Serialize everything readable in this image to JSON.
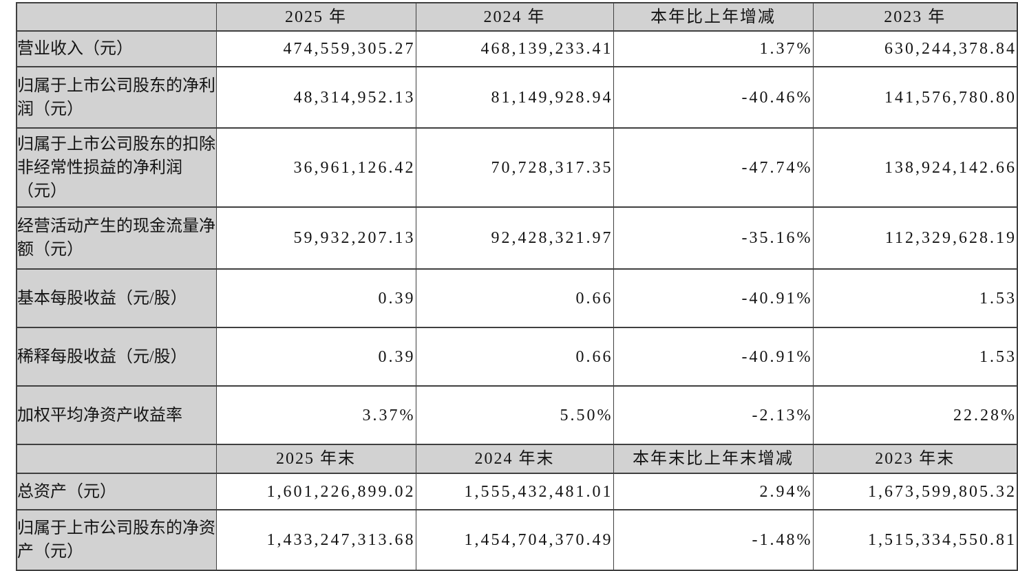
{
  "document": {
    "kind": "financial-summary-table",
    "colors": {
      "shaded_cell_bg": "#d2d2d2",
      "data_cell_bg": "#ffffff",
      "grid_line": "#3f3f3f",
      "text": "#141414"
    },
    "sections": [
      {
        "header": [
          "",
          "2025 年",
          "2024 年",
          "本年比上年增减",
          "2023 年"
        ],
        "rows": [
          {
            "label": "营业收入（元）",
            "values": [
              "474,559,305.27",
              "468,139,233.41",
              "1.37%",
              "630,244,378.84"
            ]
          },
          {
            "label": "归属于上市公司股东的净利润（元）",
            "values": [
              "48,314,952.13",
              "81,149,928.94",
              "-40.46%",
              "141,576,780.80"
            ]
          },
          {
            "label": "归属于上市公司股东的扣除非经常性损益的净利润（元）",
            "values": [
              "36,961,126.42",
              "70,728,317.35",
              "-47.74%",
              "138,924,142.66"
            ]
          },
          {
            "label": "经营活动产生的现金流量净额（元）",
            "values": [
              "59,932,207.13",
              "92,428,321.97",
              "-35.16%",
              "112,329,628.19"
            ]
          },
          {
            "label": "基本每股收益（元/股）",
            "values": [
              "0.39",
              "0.66",
              "-40.91%",
              "1.53"
            ]
          },
          {
            "label": "稀释每股收益（元/股）",
            "values": [
              "0.39",
              "0.66",
              "-40.91%",
              "1.53"
            ]
          },
          {
            "label": "加权平均净资产收益率",
            "values": [
              "3.37%",
              "5.50%",
              "-2.13%",
              "22.28%"
            ]
          }
        ]
      },
      {
        "header": [
          "",
          "2025 年末",
          "2024 年末",
          "本年末比上年末增减",
          "2023 年末"
        ],
        "rows": [
          {
            "label": "总资产（元）",
            "values": [
              "1,601,226,899.02",
              "1,555,432,481.01",
              "2.94%",
              "1,673,599,805.32"
            ]
          },
          {
            "label": "归属于上市公司股东的净资产（元）",
            "values": [
              "1,433,247,313.68",
              "1,454,704,370.49",
              "-1.48%",
              "1,515,334,550.81"
            ]
          }
        ]
      }
    ]
  }
}
